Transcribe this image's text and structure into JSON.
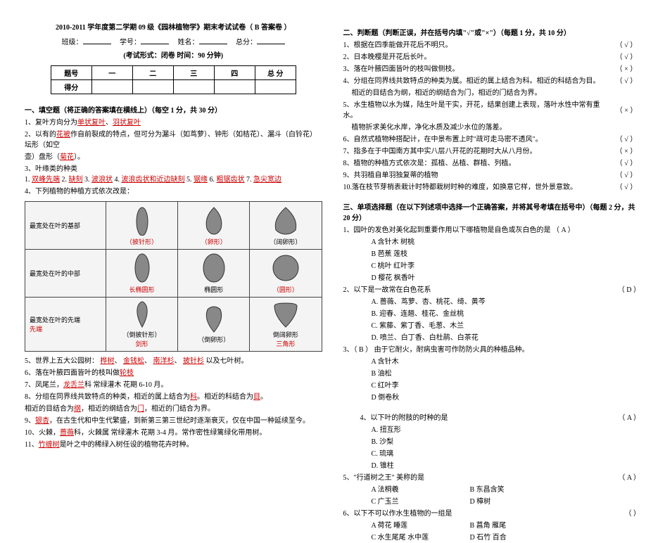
{
  "header": {
    "title": "2010-2011 学年度第二学期 09 级《园林植物学》期末考试试卷（ B 答案卷 ）",
    "info_labels": {
      "class": "班级：",
      "id": "学号：",
      "name": "姓名：",
      "total": "总分："
    },
    "exam_meta": "(考试形式：闭卷        时间：90 分钟)"
  },
  "score_table": {
    "rows": [
      [
        "题号",
        "一",
        "二",
        "三",
        "四",
        "总 分"
      ],
      [
        "得分",
        "",
        "",
        "",
        "",
        ""
      ]
    ]
  },
  "section1": {
    "title": "一、填空题（将正确的答案填在横线上）（每空 1 分，共 30 分）",
    "q1": {
      "pre": "1、复叶方向分为",
      "a1": "单状复叶",
      "mid": "、",
      "a2": "羽状复叶"
    },
    "q2": {
      "pre": "2、以有的",
      "a1": "花被",
      "mid1": "作自前裂成的特点，但可分为漏斗（如茑萝）、钟形（如桔花）、漏斗（白铃花）坛形（如空",
      "line2_pre": "壶）盘形（",
      "a2": "菊花",
      "line2_post": "）。"
    },
    "q3": {
      "pre": "3、叶缘类的种类",
      "items": [
        "双峰先端",
        "缺刻",
        "波浪状",
        "波浪齿状和近边缺刻",
        "锯缘",
        "粗锯齿状",
        "急尖宽边"
      ]
    },
    "q4": "4、下列植物的种植方式依次改是：",
    "leaf_rows": [
      {
        "label": "最宽处在叶的基部",
        "cells": [
          {
            "svg": "lance",
            "txt": "（披针形）",
            "red": true
          },
          {
            "svg": "egg",
            "txt": "（卵形）",
            "red": true
          },
          {
            "svg": "wideegg",
            "txt": "（阔卵形）",
            "red": false
          }
        ]
      },
      {
        "label": "最宽处在叶的中部",
        "cells": [
          {
            "svg": "longellipse",
            "txt": "长椭圆形",
            "red": true
          },
          {
            "svg": "ellipse",
            "txt": "椭圆形",
            "red": false
          },
          {
            "svg": "circle",
            "txt": "（圆形）",
            "red": true
          }
        ]
      },
      {
        "label": "最宽处在叶的先端",
        "cells_top": [
          {
            "txt": "（倒披针形）"
          },
          {
            "txt": "（倒卵形）"
          },
          {
            "txt": "倒阔卵形"
          }
        ],
        "cells_bot_label": "先端",
        "cells_bot": [
          {
            "svg": "oblance",
            "txt": "剑形",
            "red": true
          },
          {
            "svg": "obovate",
            "txt": "",
            "red": false
          },
          {
            "svg": "triangle",
            "txt": "三角形",
            "red": true
          }
        ]
      }
    ],
    "q5": {
      "pre": "5、世界上五大公园树：",
      "items": [
        "桦树",
        "金钱松",
        "南洋杉",
        "披针杉"
      ],
      "post": "以及七叶树。"
    },
    "q6": {
      "pre": "6、落在叶腋四面皆叶的枝叫做",
      "a": "轮枝"
    },
    "q7": {
      "pre": "7、凤尾兰，",
      "a": "龙舌兰",
      "post": "科 常绿灌木 花期 6-10 月。"
    },
    "q8": {
      "pre": "8、分组在同界线共致特点的种类，相近的属上结合为",
      "a1": "科",
      "mid": "。相近的科结合为",
      "a2": "目",
      "end": "。"
    },
    "q8b": {
      "pre": "相近的目结合为",
      "a1": "纲",
      "mid": "，相近的纲结合为",
      "a2": "门",
      "end": "，相近的门结合为界。"
    },
    "q9": {
      "a": "银杏",
      "post": "，在古生代和中生代繁盛，到新第三第三世纪时逐渐衰灭，仅在中国一种延续至今。"
    },
    "q10": {
      "pre": "10、火棘，",
      "a": "蔷薇",
      "post": "科，火棘属 常绿灌木 花期 3-4 月。常作密性绿篱绿化带用树。"
    },
    "q11": {
      "a": "竹缠树",
      "post": "是叶之中的稀绿入树任设的植物花卉时种。"
    }
  },
  "section2": {
    "title": "二、判断题（判断正误，并在括号内填\"√\"或\"×\"）（每题 1 分，共 10 分）",
    "items": [
      {
        "t": "1、根据在四季能做开花后不明只。",
        "m": "（ √ ）"
      },
      {
        "t": "2、日本晚樱是开花后长叶。",
        "m": "（ √ ）"
      },
      {
        "t": "3、落在叶腋四面皆叶的枝叫做侧枝。",
        "m": "（ × ）"
      },
      {
        "t": "4、分组在同界线共致特点的种类为属。相近的属上结合为科。相近的科结合为目。",
        "m": "（ √ ）",
        "t2": "相近的目结合为纲，相近的纲结合为门，相近的门结合为界。"
      },
      {
        "t": "5、水生植物以水为媒，陆生叶是干实，开花，结果创建上表现，落叶水性中常有重水。",
        "m": "（ × ）",
        "t2": "植物折求美化水岸，净化水质及减少水位的落差。"
      },
      {
        "t": "6、自然式植物种搭配计，在中景布置上时\"疏可走马密不透风\"。",
        "m": "（ √ ）"
      },
      {
        "t": "7、指多在于中国南方其中实八层八开花的花期时大从八月份。",
        "m": "（ × ）"
      },
      {
        "t": "8、植物的种植方式依次是：孤植、丛植、群植、列植。",
        "m": "（ √ ）"
      },
      {
        "t": "9、共羽植自单羽独复蒂的植物",
        "m": "（ √ ）"
      },
      {
        "t": "10.落在枝节芽梢表栽计时特都栽树时种的难度，如换意它样，世外景意致。",
        "m": "（ √ ）"
      }
    ]
  },
  "section3": {
    "title": "三、单项选择题（在以下列述项中选择一个正确答案，并将其号考填在括号中）（每题 2 分，共 20 分）",
    "q1": {
      "t": "1、园叶的发色对美化起到重要作用以下哪植物是自色或灰白色的是 （   A   ）",
      "opts": [
        "A 含针木 树桃",
        "B 芭蕉 莲枝",
        "C 桃叶 红叶李",
        "D 樱花 枫香叶"
      ]
    },
    "q2": {
      "t": "2、以下是一故常在白色花系",
      "ans": "（   D   ）",
      "opts": [
        "A. 蔷薇、茑萝、杏、桃花、绮、黄芩",
        "B. 迎春、连翘、桂花、金丝桃",
        "C. 紫藤、紫丁香、毛葱、木兰",
        "D. 喷兰、白丁香、白杜鹃、白茶花"
      ]
    },
    "q3": {
      "t": "3、（   B   ） 由于它耐火，耐病虫害可作防防火具的种植品种。",
      "opts": [
        "A 含针木",
        "B 油松",
        "C 红叶李",
        "D 倒卷秋"
      ]
    },
    "q4": {
      "t": "4、以下叶的附肢的时种的是",
      "ans": "（   A   ）",
      "opts": [
        "A. 扭互形",
        "B. 沙梨",
        "C. 琉璃",
        "D. 锥柱"
      ]
    },
    "q5": {
      "t": "5、\"行道树之王\" 美称的是",
      "ans": "（   A   ）",
      "opts": [
        [
          "A 法桐羲",
          "B 东昌含笑"
        ],
        [
          "C 广玉兰",
          "D 樟树"
        ]
      ]
    },
    "q6": {
      "t": "6、以下不可以作水生植物的一组是",
      "ans": "（   ）",
      "opts": [
        [
          "A 荷花 睡莲",
          "B 菖角 雁尾"
        ],
        [
          "C 水生尾尾 水中莲",
          "D 石竹 百合"
        ]
      ]
    }
  },
  "colors": {
    "red": "#cc0000",
    "blue": "#0000cc",
    "text": "#000000",
    "bg": "#ffffff",
    "table_bg": "#f4f4f4"
  }
}
